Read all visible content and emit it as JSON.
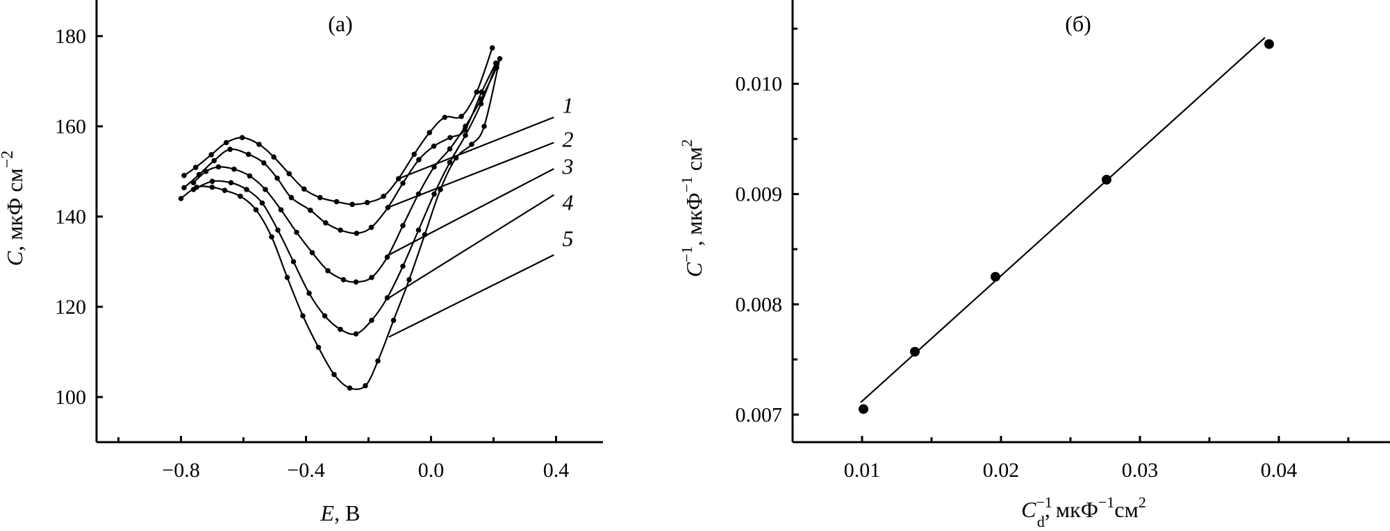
{
  "chart_data": [
    {
      "type": "line",
      "panel_label": "(a)",
      "xlabel_var": "E",
      "xlabel_unit": ", В",
      "ylabel_var": "C",
      "ylabel_unit": ", мкФ см",
      "ylabel_exp": "−2",
      "xlim": [
        -1.07,
        0.55
      ],
      "ylim": [
        90,
        188
      ],
      "xticks": [
        -0.8,
        -0.4,
        0.0,
        0.4
      ],
      "xtick_labels": [
        "−0.8",
        "−0.4",
        "0.0",
        "0.4"
      ],
      "xminor": [
        -1.0,
        -0.6,
        -0.2,
        0.2
      ],
      "yticks": [
        100,
        120,
        140,
        160,
        180
      ],
      "ytick_labels": [
        "100",
        "120",
        "140",
        "160",
        "180"
      ],
      "grid": false,
      "series": [
        {
          "name": "1",
          "points": [
            [
              -0.79,
              149.1
            ],
            [
              -0.753,
              150.9
            ],
            [
              -0.703,
              153.7
            ],
            [
              -0.655,
              156.4
            ],
            [
              -0.604,
              157.5
            ],
            [
              -0.55,
              156
            ],
            [
              -0.503,
              153.2
            ],
            [
              -0.454,
              149.5
            ],
            [
              -0.406,
              146.1
            ],
            [
              -0.355,
              144.2
            ],
            [
              -0.302,
              143.3
            ],
            [
              -0.252,
              142.7
            ],
            [
              -0.204,
              143.1
            ],
            [
              -0.152,
              144.5
            ],
            [
              -0.104,
              148.4
            ],
            [
              -0.054,
              153.8
            ],
            [
              -0.005,
              158.6
            ],
            [
              0.044,
              162
            ],
            [
              0.097,
              162.2
            ],
            [
              0.146,
              167.6
            ],
            [
              0.196,
              177.4
            ]
          ],
          "leader": [
            [
              -0.104,
              148.4
            ],
            [
              0.393,
              162
            ]
          ],
          "label_pos": [
            0.42,
            163
          ]
        },
        {
          "name": "2",
          "points": [
            [
              -0.79,
              146.4
            ],
            [
              -0.742,
              149.3
            ],
            [
              -0.694,
              152.4
            ],
            [
              -0.643,
              154.9
            ],
            [
              -0.584,
              153.8
            ],
            [
              -0.535,
              151.9
            ],
            [
              -0.492,
              148.5
            ],
            [
              -0.447,
              144.2
            ],
            [
              -0.386,
              141.4
            ],
            [
              -0.337,
              138.6
            ],
            [
              -0.29,
              137.0
            ],
            [
              -0.238,
              136.3
            ],
            [
              -0.191,
              137.6
            ],
            [
              -0.138,
              142.0
            ],
            [
              -0.09,
              147.4
            ],
            [
              -0.039,
              152.6
            ],
            [
              0.009,
              155.6
            ],
            [
              0.061,
              157.5
            ],
            [
              0.108,
              159.2
            ],
            [
              0.162,
              167.6
            ],
            [
              0.207,
              174.0
            ]
          ],
          "leader": [
            [
              -0.138,
              142.0
            ],
            [
              0.393,
              156.4
            ]
          ],
          "label_pos": [
            0.42,
            155.5
          ]
        },
        {
          "name": "3",
          "points": [
            [
              -0.76,
              147.5
            ],
            [
              -0.72,
              150
            ],
            [
              -0.68,
              151
            ],
            [
              -0.63,
              150.5
            ],
            [
              -0.58,
              149
            ],
            [
              -0.53,
              146
            ],
            [
              -0.48,
              141.5
            ],
            [
              -0.43,
              136.5
            ],
            [
              -0.38,
              132
            ],
            [
              -0.33,
              128
            ],
            [
              -0.28,
              126
            ],
            [
              -0.24,
              125.5
            ],
            [
              -0.19,
              126.5
            ],
            [
              -0.14,
              131
            ],
            [
              -0.09,
              138
            ],
            [
              -0.04,
              145
            ],
            [
              0.01,
              151
            ],
            [
              0.06,
              155
            ],
            [
              0.11,
              160
            ],
            [
              0.16,
              166
            ],
            [
              0.21,
              173
            ]
          ],
          "leader": [
            [
              -0.138,
              131.4
            ],
            [
              0.393,
              150.6
            ]
          ],
          "label_pos": [
            0.42,
            149.5
          ]
        },
        {
          "name": "4",
          "points": [
            [
              -0.76,
              146
            ],
            [
              -0.7,
              147.8
            ],
            [
              -0.64,
              147.5
            ],
            [
              -0.59,
              146
            ],
            [
              -0.54,
              143
            ],
            [
              -0.49,
              137
            ],
            [
              -0.44,
              130
            ],
            [
              -0.39,
              123
            ],
            [
              -0.34,
              118
            ],
            [
              -0.29,
              115
            ],
            [
              -0.24,
              114
            ],
            [
              -0.19,
              117
            ],
            [
              -0.14,
              122
            ],
            [
              -0.09,
              129
            ],
            [
              -0.04,
              137
            ],
            [
              0.01,
              145
            ],
            [
              0.06,
              152
            ],
            [
              0.11,
              158
            ],
            [
              0.16,
              165
            ],
            [
              0.21,
              174
            ]
          ],
          "leader": [
            [
              -0.146,
              121.5
            ],
            [
              0.393,
              144.8
            ]
          ],
          "label_pos": [
            0.42,
            141.5
          ]
        },
        {
          "name": "5",
          "points": [
            [
              -0.8,
              144
            ],
            [
              -0.75,
              146.5
            ],
            [
              -0.7,
              146.5
            ],
            [
              -0.66,
              145.8
            ],
            [
              -0.61,
              144.5
            ],
            [
              -0.56,
              141.5
            ],
            [
              -0.51,
              135.5
            ],
            [
              -0.46,
              126.5
            ],
            [
              -0.41,
              118
            ],
            [
              -0.36,
              111
            ],
            [
              -0.31,
              105
            ],
            [
              -0.26,
              102
            ],
            [
              -0.21,
              102.5
            ],
            [
              -0.17,
              108
            ],
            [
              -0.12,
              117
            ],
            [
              -0.07,
              126
            ],
            [
              -0.02,
              136
            ],
            [
              0.03,
              146
            ],
            [
              0.08,
              153
            ],
            [
              0.13,
              156
            ],
            [
              0.17,
              160
            ],
            [
              0.22,
              175
            ]
          ],
          "leader": [
            [
              -0.135,
              113.3
            ],
            [
              0.393,
              131.5
            ]
          ],
          "label_pos": [
            0.42,
            133.5
          ]
        }
      ]
    },
    {
      "type": "scatter",
      "panel_label": "(б)",
      "xlabel_var": "C",
      "xlabel_sub": "d",
      "xlabel_sup": "−1",
      "xlabel_unit": ", мкФ",
      "xlabel_unit_sup": "−1",
      "xlabel_unit2": "см",
      "xlabel_unit2_sup": "2",
      "ylabel_var": "C",
      "ylabel_sup": "−1",
      "ylabel_unit": ", мкФ",
      "ylabel_unit_sup": "−1",
      "ylabel_unit2": " см",
      "ylabel_unit2_sup": "2",
      "xlim": [
        0.005,
        0.048
      ],
      "ylim": [
        0.00675,
        0.01076
      ],
      "xticks": [
        0.01,
        0.02,
        0.03,
        0.04
      ],
      "xtick_labels": [
        "0.01",
        "0.02",
        "0.03",
        "0.04"
      ],
      "xminor": [
        0.015,
        0.025,
        0.035,
        0.045
      ],
      "yticks": [
        0.007,
        0.008,
        0.009,
        0.01
      ],
      "ytick_labels": [
        "0.007",
        "0.008",
        "0.009",
        "0.010"
      ],
      "yminor": [
        0.0075,
        0.0085,
        0.0095,
        0.0105
      ],
      "grid": false,
      "points": [
        [
          0.0101,
          0.00705
        ],
        [
          0.0138,
          0.00757
        ],
        [
          0.0196,
          0.00825
        ],
        [
          0.0276,
          0.00913
        ],
        [
          0.0393,
          0.01036
        ]
      ],
      "fit_line": [
        [
          0.0099,
          0.00711
        ],
        [
          0.039,
          0.01042
        ]
      ]
    }
  ]
}
